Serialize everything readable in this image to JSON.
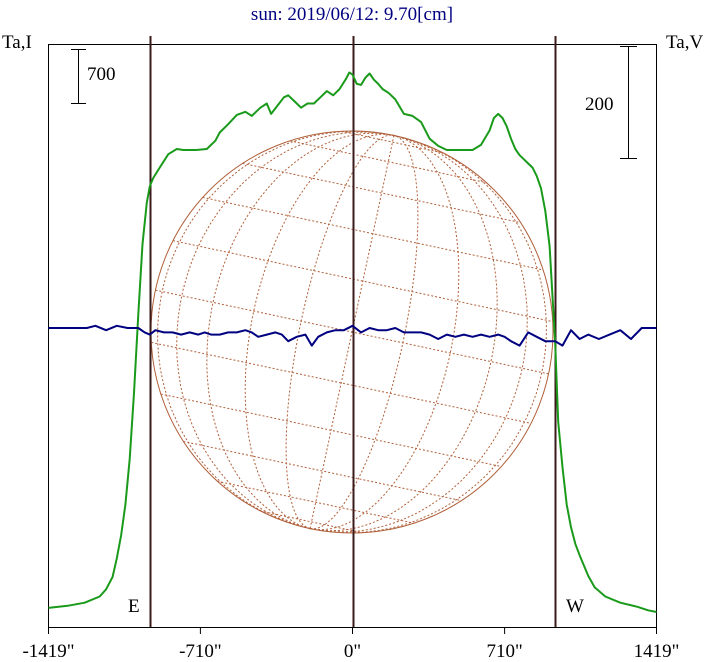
{
  "chart_data": {
    "type": "line",
    "title": "sun: 2019/06/12: 9.70[cm]",
    "y_left_label": "Ta,I",
    "y_right_label": "Ta,V",
    "scale_left_label": "700",
    "scale_right_label": "200",
    "limb_east_label": "E",
    "limb_west_label": "W",
    "x_tick_labels": [
      "-1419\"",
      "-710\"",
      "0\"",
      "710\"",
      "1419\""
    ],
    "x_ticks": [
      -1419,
      -710,
      0,
      710,
      1419
    ],
    "xlim": [
      -1419,
      1419
    ],
    "limb_lines_x": [
      -946,
      0,
      946
    ],
    "colors": {
      "intensity": "#1a9a1a",
      "polarization": "#000080",
      "globe": "#b0603a",
      "limb": "#3a1a1a",
      "axis": "#000000"
    },
    "series": [
      {
        "name": "Ta,I",
        "x": [
          -1419,
          -1330,
          -1250,
          -1180,
          -1150,
          -1120,
          -1100,
          -1080,
          -1060,
          -1040,
          -1020,
          -1000,
          -980,
          -960,
          -946,
          -930,
          -900,
          -860,
          -820,
          -790,
          -770,
          -730,
          -680,
          -640,
          -620,
          -580,
          -540,
          -500,
          -470,
          -430,
          -400,
          -380,
          -350,
          -320,
          -300,
          -270,
          -240,
          -210,
          -180,
          -150,
          -120,
          -90,
          -60,
          -30,
          -15,
          0,
          20,
          40,
          60,
          80,
          100,
          120,
          140,
          170,
          200,
          240,
          280,
          320,
          360,
          400,
          440,
          480,
          520,
          560,
          600,
          640,
          660,
          680,
          700,
          720,
          740,
          760,
          780,
          800,
          820,
          840,
          860,
          880,
          900,
          920,
          946,
          960,
          980,
          1000,
          1020,
          1040,
          1060,
          1080,
          1100,
          1130,
          1180,
          1250,
          1330,
          1380,
          1419
        ],
        "values": [
          20,
          30,
          45,
          75,
          110,
          170,
          260,
          370,
          520,
          740,
          1060,
          1440,
          1780,
          1980,
          2060,
          2100,
          2150,
          2215,
          2240,
          2235,
          2235,
          2235,
          2240,
          2280,
          2320,
          2360,
          2405,
          2420,
          2400,
          2440,
          2460,
          2410,
          2450,
          2490,
          2500,
          2470,
          2440,
          2460,
          2460,
          2490,
          2520,
          2500,
          2530,
          2580,
          2610,
          2600,
          2555,
          2550,
          2585,
          2605,
          2575,
          2555,
          2530,
          2510,
          2480,
          2410,
          2400,
          2370,
          2290,
          2255,
          2235,
          2235,
          2235,
          2235,
          2260,
          2330,
          2390,
          2410,
          2390,
          2350,
          2290,
          2240,
          2210,
          2190,
          2170,
          2150,
          2110,
          2050,
          1940,
          1770,
          1300,
          920,
          700,
          520,
          410,
          330,
          275,
          225,
          175,
          120,
          75,
          45,
          25,
          8,
          0
        ]
      },
      {
        "name": "Ta,V",
        "x": [
          -1419,
          -1300,
          -1240,
          -1200,
          -1150,
          -1100,
          -1050,
          -1000,
          -970,
          -946,
          -920,
          -880,
          -840,
          -800,
          -760,
          -720,
          -690,
          -660,
          -620,
          -580,
          -540,
          -500,
          -470,
          -440,
          -400,
          -360,
          -330,
          -300,
          -260,
          -220,
          -190,
          -160,
          -120,
          -80,
          -40,
          0,
          40,
          80,
          120,
          160,
          200,
          240,
          280,
          320,
          360,
          400,
          440,
          480,
          520,
          560,
          600,
          640,
          680,
          710,
          740,
          780,
          820,
          860,
          900,
          946,
          980,
          1020,
          1060,
          1100,
          1150,
          1200,
          1250,
          1300,
          1350,
          1419
        ],
        "values": [
          0,
          0,
          0,
          1,
          -1,
          1,
          0,
          0,
          -2,
          -3,
          -1,
          -2,
          -2,
          -3,
          -2,
          -3,
          -2,
          -3,
          -3,
          -2,
          -2,
          -1,
          -2,
          -4,
          -3,
          -2,
          -3,
          -6,
          -4,
          -3,
          -8,
          -4,
          -2,
          -1,
          -1,
          1,
          -2,
          0,
          -1,
          -1,
          0,
          -2,
          -2,
          -2,
          -3,
          -5,
          -3,
          -4,
          -3,
          -4,
          -3,
          -4,
          -3,
          -4,
          -6,
          -8,
          -2,
          -4,
          -6,
          -6,
          -8,
          -1,
          -5,
          -3,
          -5,
          -3,
          -1,
          -5,
          0,
          0
        ]
      }
    ]
  }
}
